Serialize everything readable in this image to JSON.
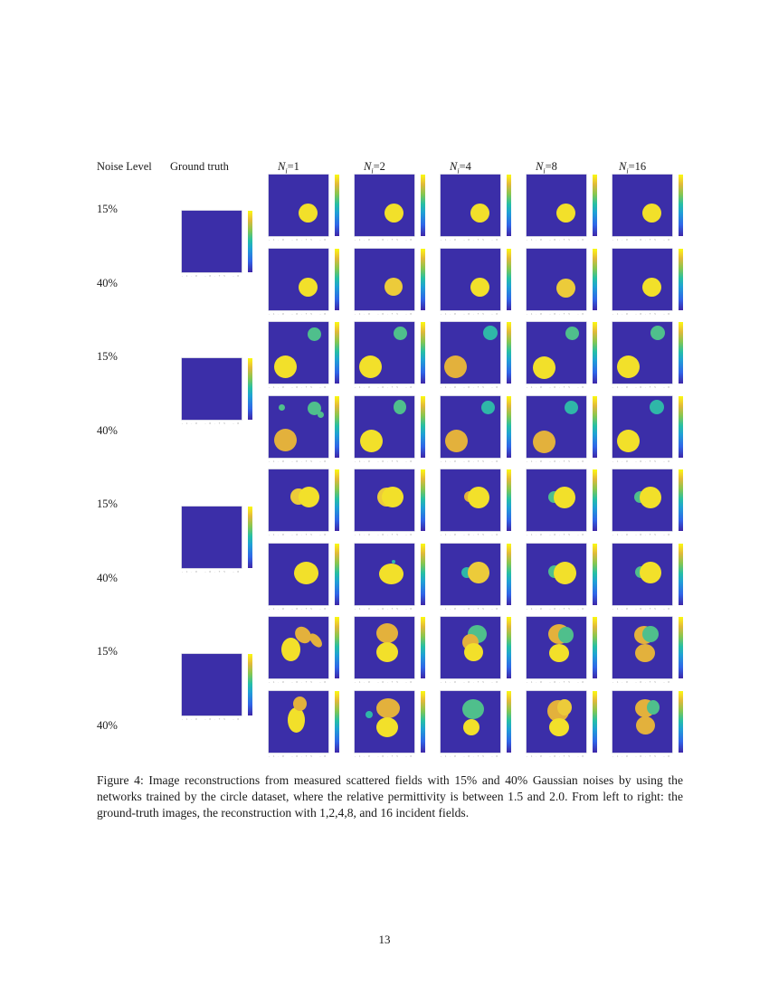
{
  "figure": {
    "headers": {
      "noise_level": "Noise Level",
      "ground_truth": "Ground truth",
      "columns": [
        {
          "label_sym": "N",
          "label_sub": "i",
          "label_eq": "=1"
        },
        {
          "label_sym": "N",
          "label_sub": "i",
          "label_eq": "=2"
        },
        {
          "label_sym": "N",
          "label_sub": "i",
          "label_eq": "=4"
        },
        {
          "label_sym": "N",
          "label_sub": "i",
          "label_eq": "=8"
        },
        {
          "label_sym": "N",
          "label_sub": "i",
          "label_eq": "=16"
        }
      ]
    },
    "rows": [
      {
        "noise": "15%"
      },
      {
        "noise": "40%"
      },
      {
        "noise": "15%"
      },
      {
        "noise": "40%"
      },
      {
        "noise": "15%"
      },
      {
        "noise": "40%"
      },
      {
        "noise": "15%"
      },
      {
        "noise": "40%"
      }
    ],
    "colormap": {
      "low": "#3b2ea8",
      "mid": "#26bfa4",
      "high": "#f9fb0e",
      "orange": "#e8b73a",
      "green": "#4fc18a"
    },
    "caption": "Figure 4: Image reconstructions from measured scattered fields with 15% and 40% Gaussian noises by using the networks trained by the circle dataset, where the relative permittivity is between 1.5 and 2.0. From left to right: the ground-truth images, the reconstruction with 1,2,4,8, and 16 incident fields.",
    "page_number": "13"
  }
}
